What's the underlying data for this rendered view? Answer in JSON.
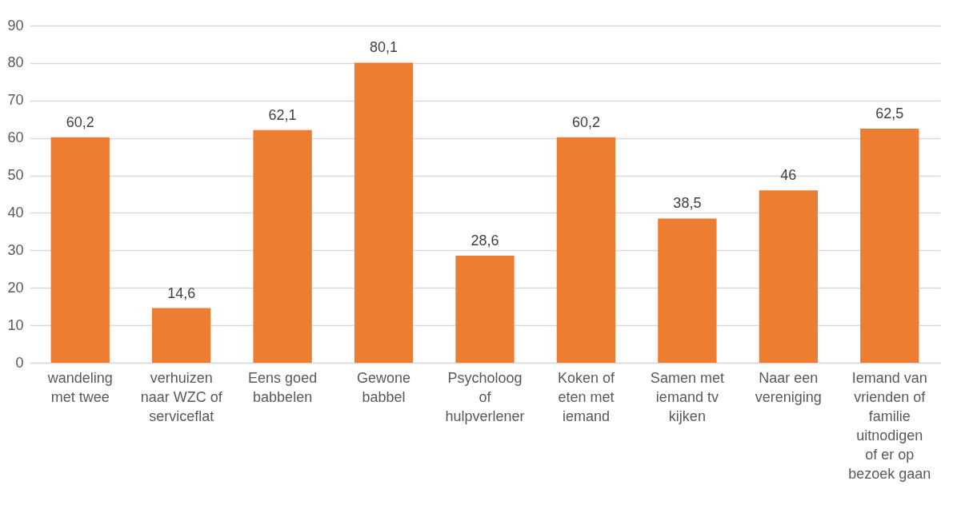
{
  "chart_data": {
    "type": "bar",
    "categories": [
      "wandeling met twee",
      "verhuizen naar WZC of serviceflat",
      "Eens goed babbelen",
      "Gewone babbel",
      "Psycholoog of hulpverlener",
      "Koken of eten met iemand",
      "Samen met iemand tv kijken",
      "Naar een vereniging",
      "Iemand van vrienden of familie uitnodigen of er op bezoek gaan"
    ],
    "values": [
      60.2,
      14.6,
      62.1,
      80.1,
      28.6,
      60.2,
      38.5,
      46,
      62.5
    ],
    "value_labels": [
      "60,2",
      "14,6",
      "62,1",
      "80,1",
      "28,6",
      "60,2",
      "38,5",
      "46",
      "62,5"
    ],
    "color": "#ed7d31",
    "ylim": [
      0,
      90
    ],
    "yticks": [
      0,
      10,
      20,
      30,
      40,
      50,
      60,
      70,
      80,
      90
    ],
    "grid": "y"
  }
}
